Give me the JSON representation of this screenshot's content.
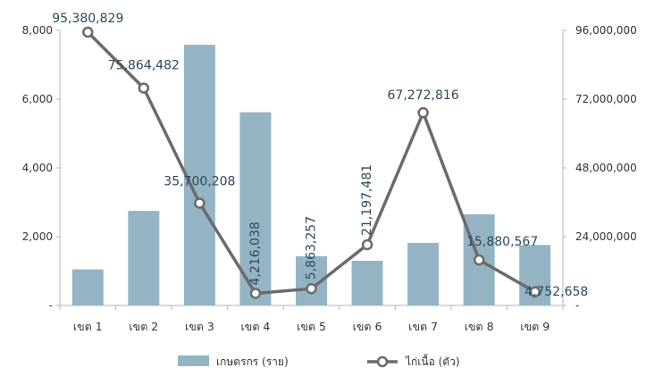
{
  "chart_data": {
    "type": "bar",
    "categories": [
      "เขต 1",
      "เขต 2",
      "เขต 3",
      "เขต 4",
      "เขต 5",
      "เขต 6",
      "เขต 7",
      "เขต 8",
      "เขต 9"
    ],
    "series": [
      {
        "name": "เกษตรกร (ราย)",
        "type": "bar",
        "axis": "left",
        "values": [
          1050,
          2750,
          7580,
          5620,
          1430,
          1300,
          1820,
          2650,
          1760
        ],
        "color": "#94b4c4"
      },
      {
        "name": "ไก่เนื้อ (ตัว)",
        "type": "line",
        "axis": "right",
        "values": [
          95380829,
          75864482,
          35700208,
          4216038,
          5863257,
          21197481,
          67272816,
          15880567,
          4752658
        ],
        "labels": [
          "95,380,829",
          "75,864,482",
          "35,700,208",
          "4,216,038",
          "5,863,257",
          "21,197,481",
          "67,272,816",
          "15,880,567",
          "4,752,658"
        ],
        "color": "#6b6b6b"
      }
    ],
    "y_left": {
      "ylim": [
        0,
        8000
      ],
      "ticks": [
        0,
        2000,
        4000,
        6000,
        8000
      ],
      "tick_labels": [
        "-",
        "2,000",
        "4,000",
        "6,000",
        "8,000"
      ]
    },
    "y_right": {
      "ylim": [
        0,
        96000000
      ],
      "ticks": [
        0,
        24000000,
        48000000,
        72000000,
        96000000
      ],
      "tick_labels": [
        "-",
        "24,000,000",
        "48,000,000",
        "72,000,000",
        "96,000,000"
      ]
    },
    "grid": false,
    "legend_position": "bottom",
    "title": "",
    "xlabel": "",
    "ylabel": ""
  }
}
